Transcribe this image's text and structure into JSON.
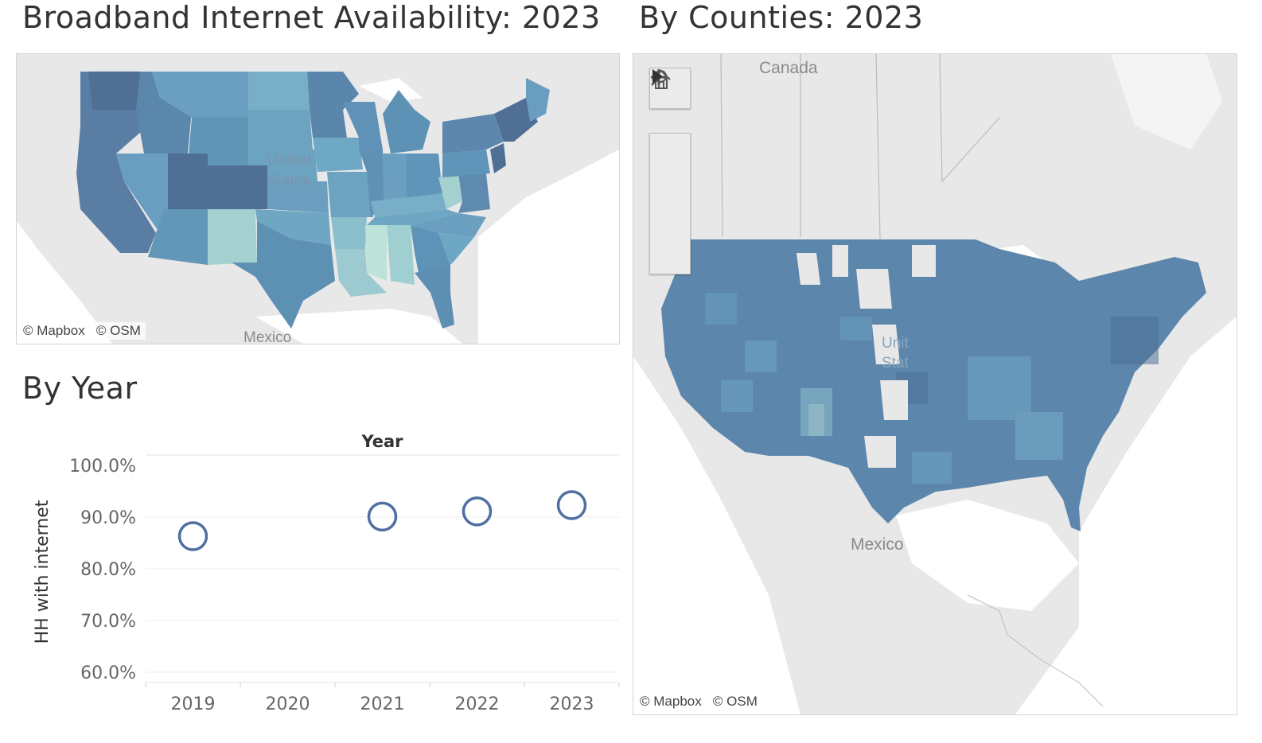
{
  "titles": {
    "main": "Broadband Internet Availability: 2023",
    "counties": "By Counties: 2023",
    "by_year": "By Year"
  },
  "state_map": {
    "attribution_mapbox": "© Mapbox",
    "attribution_osm": "© OSM",
    "label_country": "United",
    "label_country_2": "States",
    "label_mexico": "Mexico"
  },
  "county_map": {
    "label_canada": "Canada",
    "label_mexico": "Mexico",
    "label_country": "Unit",
    "label_country_2": "Stat",
    "attribution_mapbox": "© Mapbox",
    "attribution_osm": "© OSM",
    "controls": [
      "search-icon",
      "zoom-in-icon",
      "zoom-out-icon",
      "home-icon",
      "play-icon"
    ]
  },
  "colors": {
    "dark": "#4f6f95",
    "mid": "#6194b4",
    "light": "#8cbfcc",
    "pale": "#b6ddd6",
    "marker": "#4e6fa0",
    "land": "#e8e8e8",
    "water": "#ffffff"
  },
  "chart_data": {
    "type": "scatter",
    "title": "Year",
    "ylabel": "HH with internet",
    "categories": [
      "2019",
      "2020",
      "2021",
      "2022",
      "2023"
    ],
    "series": [
      {
        "values": [
          86.3,
          null,
          90.1,
          91.1,
          92.3
        ]
      }
    ],
    "yticks": [
      "100.0%",
      "90.0%",
      "80.0%",
      "70.0%",
      "60.0%"
    ],
    "ytick_values": [
      100,
      90,
      80,
      70,
      60
    ],
    "ylim": [
      58,
      102
    ]
  }
}
